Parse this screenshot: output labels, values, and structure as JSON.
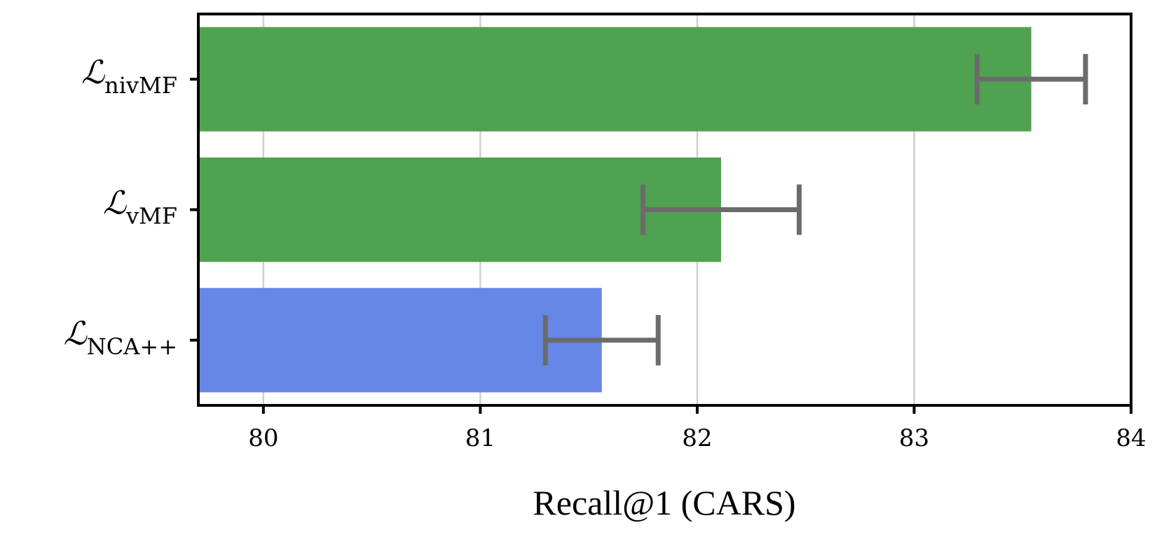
{
  "chart_data": {
    "type": "bar",
    "orientation": "horizontal",
    "title": "",
    "xlabel": "Recall@1 (CARS)",
    "ylabel": "",
    "xlim": [
      79.7,
      84
    ],
    "xticks": [
      "80",
      "81",
      "82",
      "83",
      "84"
    ],
    "grid": "vertical",
    "categories": [
      {
        "symbol": "ℒ",
        "subscript": "nivMF"
      },
      {
        "symbol": "ℒ",
        "subscript": "vMF"
      },
      {
        "symbol": "ℒ",
        "subscript": "NCA++"
      }
    ],
    "values": [
      83.54,
      82.11,
      81.56
    ],
    "error_low": [
      83.29,
      81.75,
      81.3
    ],
    "error_high": [
      83.79,
      82.47,
      81.82
    ],
    "colors": [
      "#4fa24f",
      "#4fa24f",
      "#6787e6"
    ],
    "error_color": "#6b6b6b"
  }
}
